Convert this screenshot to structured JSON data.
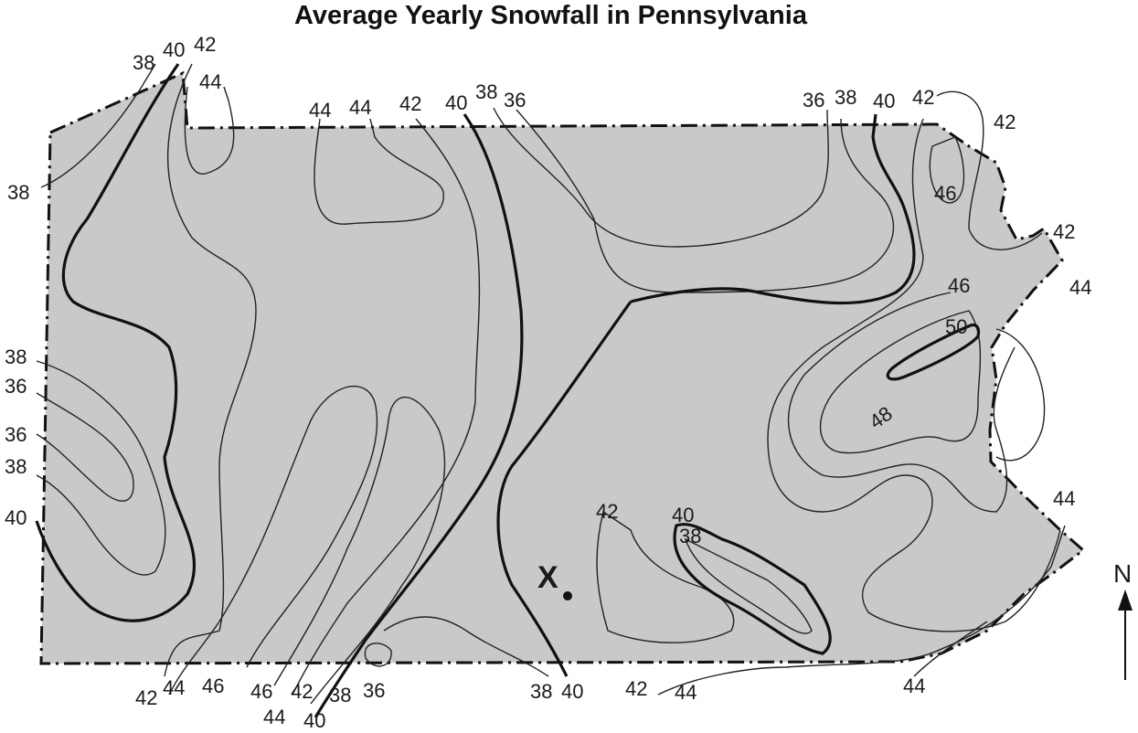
{
  "title": "Average Yearly Snowfall in Pennsylvania",
  "colors": {
    "state_fill": "#c9c9c9",
    "lines": "#222222",
    "background": "#ffffff"
  },
  "location_marker": {
    "label": "X"
  },
  "compass": {
    "label": "N"
  },
  "isoline_labels": [
    "38",
    "40",
    "42",
    "44",
    "38",
    "38",
    "36",
    "36",
    "38",
    "40",
    "44",
    "44",
    "42",
    "40",
    "38",
    "36",
    "36",
    "38",
    "40",
    "42",
    "42",
    "46",
    "42",
    "46",
    "44",
    "50",
    "48",
    "44",
    "42",
    "40",
    "38",
    "42",
    "44",
    "46",
    "46",
    "44",
    "42",
    "38",
    "40",
    "36",
    "38",
    "40",
    "42",
    "44",
    "44"
  ]
}
